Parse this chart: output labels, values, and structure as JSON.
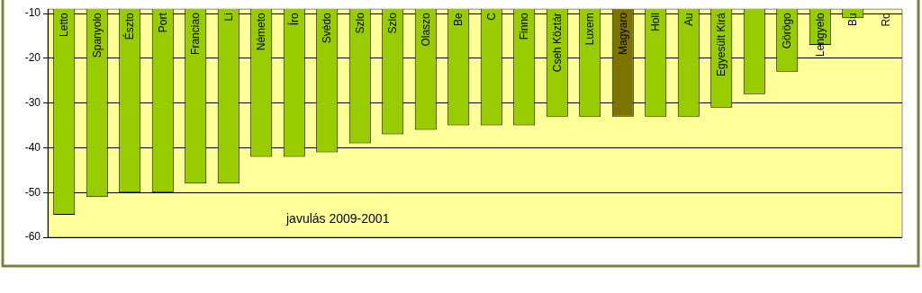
{
  "chart_data": {
    "type": "bar",
    "categories": [
      "Letto",
      "Spanyolo",
      "Észto",
      "Port",
      "Franciao",
      "Li",
      "Németo",
      "Íro",
      "Svédo",
      "Szlo",
      "Szlo",
      "Olaszo",
      "Be",
      "C",
      "Finno",
      "Cseh Köztár",
      "Luxem",
      "Magyaro",
      "Holl",
      "Au",
      "Egyesült Kirá",
      null,
      "Görögo",
      "Lengyelo",
      "Bu",
      "Ro"
    ],
    "values": [
      -55,
      -51,
      -50,
      -50,
      -48,
      -48,
      -42,
      -42,
      -41,
      -39,
      -37,
      -36,
      -35,
      -35,
      -35,
      -33,
      -33,
      -33,
      -33,
      -33,
      -31,
      -28,
      -23,
      -17,
      -11,
      null
    ],
    "colors": [
      "#99cc00",
      "#99cc00",
      "#99cc00",
      "#99cc00",
      "#99cc00",
      "#99cc00",
      "#99cc00",
      "#99cc00",
      "#99cc00",
      "#99cc00",
      "#99cc00",
      "#99cc00",
      "#99cc00",
      "#99cc00",
      "#99cc00",
      "#99cc00",
      "#99cc00",
      "#7d7300",
      "#99cc00",
      "#99cc00",
      "#99cc00",
      "#99cc00",
      "#99cc00",
      "#99cc00",
      "#99cc00",
      "#99cc00"
    ],
    "ylim": [
      -60,
      -9
    ],
    "yticks": [
      -60,
      -50,
      -40,
      -30,
      -20,
      -10
    ],
    "grid": "y",
    "annotations": [
      "javulás 2009-2001"
    ]
  }
}
